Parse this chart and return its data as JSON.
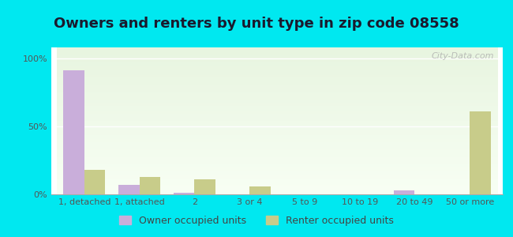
{
  "title": "Owners and renters by unit type in zip code 08558",
  "categories": [
    "1, detached",
    "1, attached",
    "2",
    "3 or 4",
    "5 to 9",
    "10 to 19",
    "20 to 49",
    "50 or more"
  ],
  "owner_values": [
    91,
    7,
    1,
    0,
    0,
    0,
    3,
    0
  ],
  "renter_values": [
    18,
    13,
    11,
    6,
    0,
    0,
    0,
    61
  ],
  "owner_color": "#c9aeda",
  "renter_color": "#c8cc8a",
  "background_color": "#00e8f0",
  "ylabel_ticks": [
    "0%",
    "50%",
    "100%"
  ],
  "yticks": [
    0,
    50,
    100
  ],
  "ylim": [
    0,
    108
  ],
  "legend_owner": "Owner occupied units",
  "legend_renter": "Renter occupied units",
  "watermark": "City-Data.com",
  "title_fontsize": 13,
  "tick_fontsize": 8,
  "bar_width": 0.38
}
